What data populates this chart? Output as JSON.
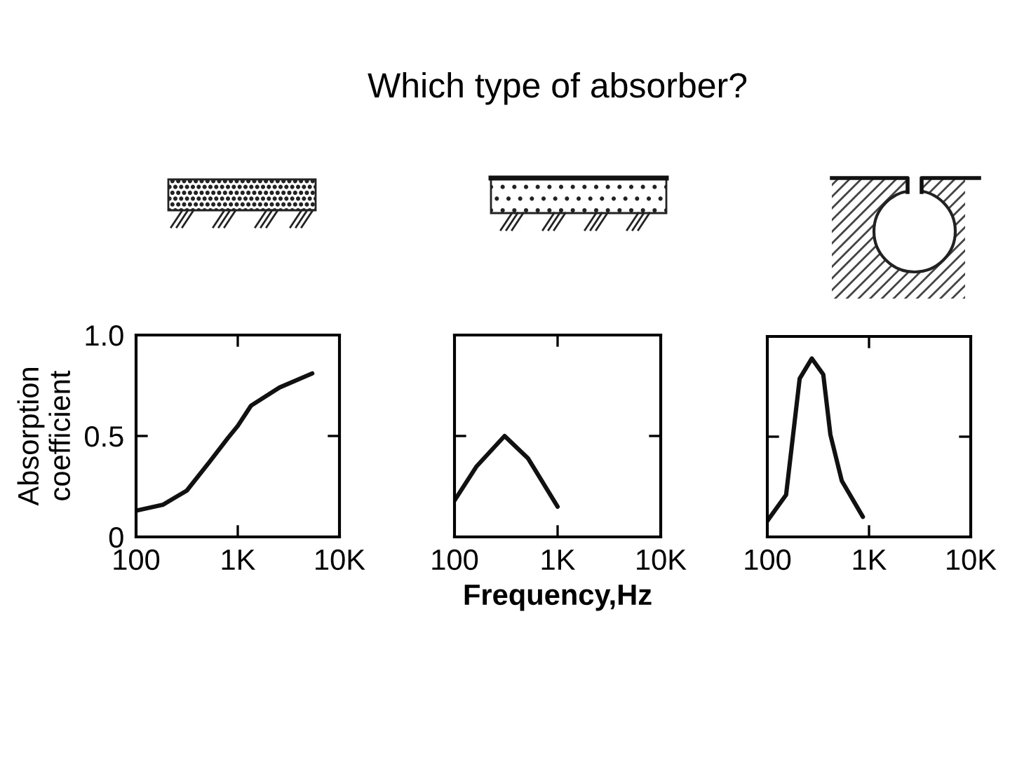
{
  "chart_data": [
    {
      "type": "line",
      "ylabel": "Absorption\ncoefficient",
      "log": "x",
      "xlim": [
        100,
        10000
      ],
      "ylim": [
        0,
        1
      ],
      "xticks": [
        {
          "value": 100,
          "label": "100"
        },
        {
          "value": 1000,
          "label": "1K"
        },
        {
          "value": 10000,
          "label": "10K"
        }
      ],
      "yticks": [
        0,
        0.5,
        {
          "value": 1,
          "label": "1.0"
        }
      ],
      "grid": false,
      "color": "#111111",
      "x": [
        100,
        185,
        316,
        525,
        800,
        1000,
        1350,
        2570,
        5400
      ],
      "values": [
        0.13,
        0.16,
        0.23,
        0.37,
        0.49,
        0.55,
        0.65,
        0.74,
        0.81
      ]
    },
    {
      "type": "line",
      "title": "Which type of absorber?",
      "xlabel": "Frequency,Hz",
      "log": "x",
      "xlim": [
        100,
        10000
      ],
      "ylim": [
        0,
        1
      ],
      "tick_labels": "x",
      "xticks": [
        {
          "value": 100,
          "label": "100"
        },
        {
          "value": 1000,
          "label": "1K"
        },
        {
          "value": 10000,
          "label": "10K"
        }
      ],
      "yticks": [
        {
          "value": 0,
          "label": null
        },
        {
          "value": 0.5,
          "label": null
        },
        {
          "value": 1,
          "label": null
        }
      ],
      "grid": false,
      "color": "#111111",
      "x": [
        100,
        164,
        306,
        515,
        1000
      ],
      "values": [
        0.18,
        0.35,
        0.5,
        0.39,
        0.15
      ]
    },
    {
      "type": "line",
      "log": "x",
      "xlim": [
        100,
        10000
      ],
      "ylim": [
        0,
        1
      ],
      "tick_labels": "x",
      "xticks": [
        {
          "value": 100,
          "label": "100"
        },
        {
          "value": 1000,
          "label": "1K"
        },
        {
          "value": 10000,
          "label": "10K"
        }
      ],
      "yticks": [
        {
          "value": 0,
          "label": null
        },
        {
          "value": 0.5,
          "label": null
        },
        {
          "value": 1,
          "label": null
        }
      ],
      "grid": false,
      "color": "#111111",
      "x": [
        100,
        153,
        208,
        274,
        355,
        417,
        540,
        870
      ],
      "values": [
        0.08,
        0.21,
        0.79,
        0.89,
        0.81,
        0.51,
        0.28,
        0.1
      ]
    }
  ]
}
